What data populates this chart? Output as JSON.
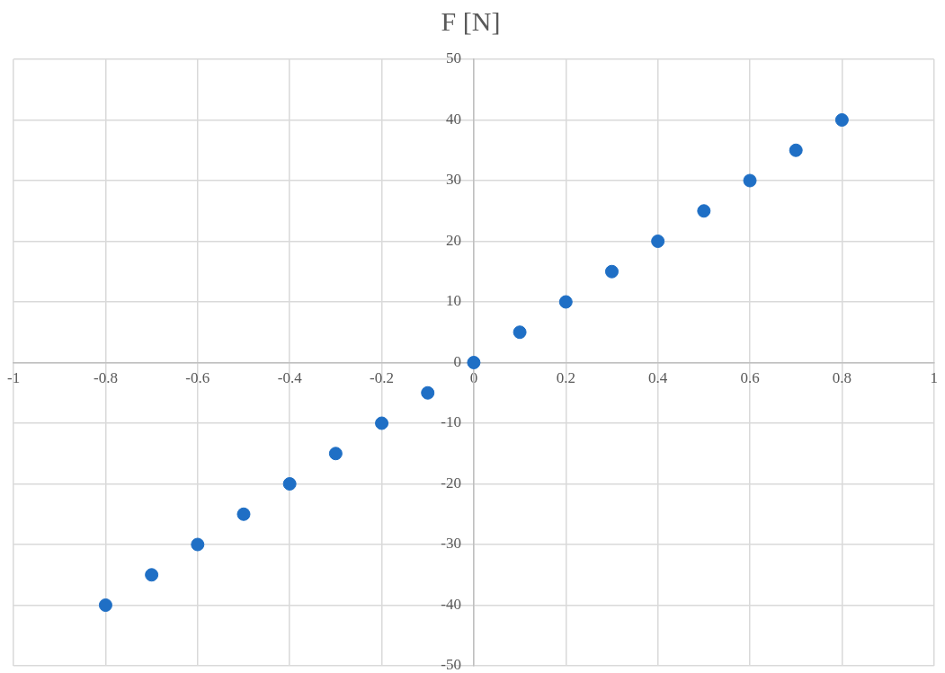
{
  "chart_data": {
    "type": "scatter",
    "title": "F [N]",
    "x": [
      -0.8,
      -0.7,
      -0.6,
      -0.5,
      -0.4,
      -0.3,
      -0.2,
      -0.1,
      0,
      0.1,
      0.2,
      0.3,
      0.4,
      0.5,
      0.6,
      0.7,
      0.8
    ],
    "series": [
      {
        "color": "#1f6fc5",
        "values": [
          -40,
          -35,
          -30,
          -25,
          -20,
          -15,
          -10,
          -5,
          0,
          5,
          10,
          15,
          20,
          25,
          30,
          35,
          40
        ]
      }
    ],
    "xlim": [
      -1,
      1
    ],
    "xticks": [
      -1,
      -0.8,
      -0.6,
      -0.4,
      -0.2,
      0,
      0.2,
      0.4,
      0.6,
      0.8,
      1
    ],
    "ylim": [
      -50,
      50
    ],
    "yticks": [
      -50,
      -40,
      -30,
      -20,
      -10,
      0,
      10,
      20,
      30,
      40,
      50
    ],
    "grid": true,
    "legend": false,
    "marker": "circle"
  }
}
